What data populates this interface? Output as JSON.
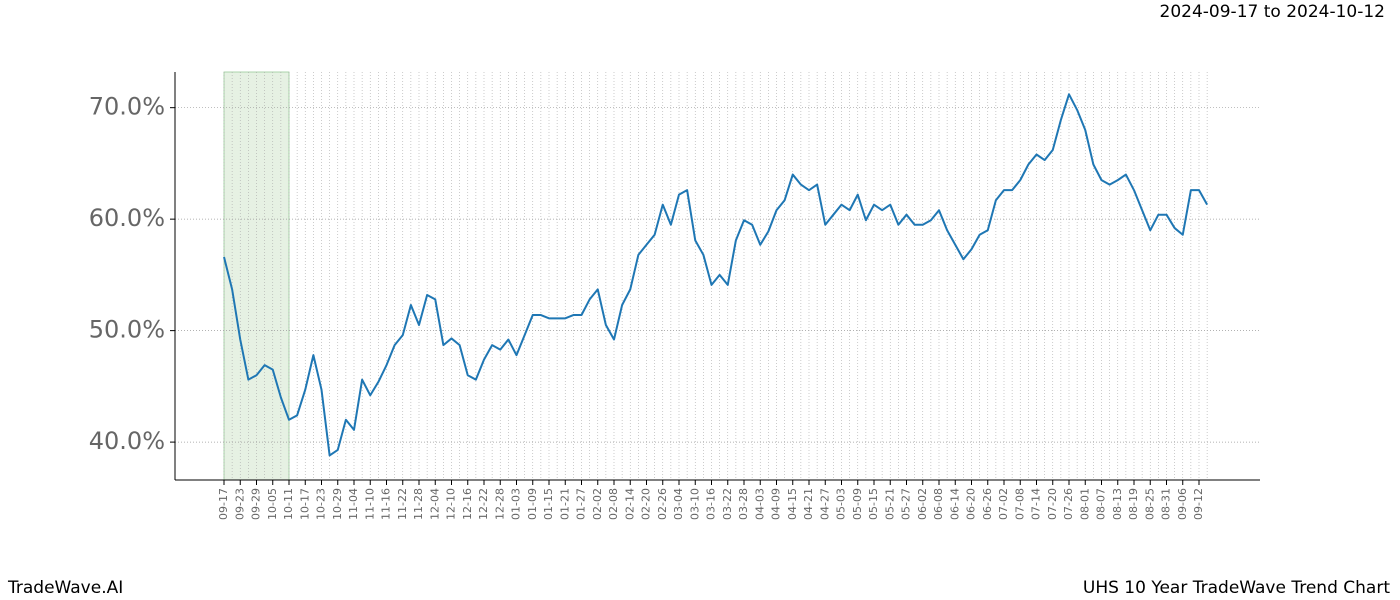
{
  "chart_data": {
    "type": "line",
    "title": "2024-09-17 to 2024-10-12",
    "footer_left": "TradeWave.AI",
    "footer_right": "UHS 10 Year TradeWave Trend Chart",
    "x": [
      "09-17",
      null,
      "09-23",
      null,
      "09-29",
      null,
      "10-05",
      null,
      "10-11",
      null,
      "10-17",
      null,
      "10-23",
      null,
      "10-29",
      null,
      "11-04",
      null,
      "11-10",
      null,
      "11-16",
      null,
      "11-22",
      null,
      "11-28",
      null,
      "12-04",
      null,
      "12-10",
      null,
      "12-16",
      null,
      "12-22",
      null,
      "12-28",
      null,
      "01-03",
      null,
      "01-09",
      null,
      "01-15",
      null,
      "01-21",
      null,
      "01-27",
      null,
      "02-02",
      null,
      "02-08",
      null,
      "02-14",
      null,
      "02-20",
      null,
      "02-26",
      null,
      "03-04",
      null,
      "03-10",
      null,
      "03-16",
      null,
      "03-22",
      null,
      "03-28",
      null,
      "04-03",
      null,
      "04-09",
      null,
      "04-15",
      null,
      "04-21",
      null,
      "04-27",
      null,
      "05-03",
      null,
      "05-09",
      null,
      "05-15",
      null,
      "05-21",
      null,
      "05-27",
      null,
      "06-02",
      null,
      "06-08",
      null,
      "06-14",
      null,
      "06-20",
      null,
      "06-26",
      null,
      "07-02",
      null,
      "07-08",
      null,
      "07-14",
      null,
      "07-20",
      null,
      "07-26",
      null,
      "08-01",
      null,
      "08-07",
      null,
      "08-13",
      null,
      "08-19",
      null,
      "08-25",
      null,
      "08-31",
      null,
      "09-06",
      null,
      "09-12",
      null
    ],
    "series": [
      {
        "color": "#1f77b4",
        "values": [
          56.6,
          53.7,
          49.2,
          45.6,
          46.0,
          46.9,
          46.5,
          44.0,
          42.0,
          42.4,
          44.7,
          47.8,
          44.7,
          38.8,
          39.3,
          42.0,
          41.1,
          45.6,
          44.2,
          45.4,
          46.9,
          48.7,
          49.6,
          52.3,
          50.5,
          53.2,
          52.8,
          48.7,
          49.3,
          48.7,
          46.0,
          45.6,
          47.4,
          48.7,
          48.3,
          49.2,
          47.8,
          49.6,
          51.4,
          51.4,
          51.1,
          51.1,
          51.1,
          51.4,
          51.4,
          52.8,
          53.7,
          50.5,
          49.2,
          52.3,
          53.7,
          56.8,
          57.7,
          58.6,
          61.3,
          59.5,
          62.2,
          62.6,
          58.1,
          56.8,
          54.1,
          55.0,
          54.1,
          58.1,
          59.9,
          59.5,
          57.7,
          58.9,
          60.8,
          61.7,
          64.0,
          63.1,
          62.6,
          63.1,
          59.5,
          60.4,
          61.3,
          60.8,
          62.2,
          59.9,
          61.3,
          60.8,
          61.3,
          59.5,
          60.4,
          59.5,
          59.5,
          59.9,
          60.8,
          59.0,
          57.7,
          56.4,
          57.3,
          58.6,
          59.0,
          61.7,
          62.6,
          62.6,
          63.5,
          64.9,
          65.8,
          65.3,
          66.2,
          68.9,
          71.2,
          69.8,
          68.0,
          64.9,
          63.5,
          63.1,
          63.5,
          64.0,
          62.6,
          60.8,
          59.0,
          60.4,
          60.4,
          59.2,
          58.6,
          62.6,
          62.6,
          61.3
        ]
      }
    ],
    "highlight": {
      "from": "09-17",
      "to": "10-11",
      "color": "#e6f1e3"
    },
    "ylim": [
      36.6,
      73.2
    ],
    "yticks": [
      {
        "value": 40,
        "label": "40.0%"
      },
      {
        "value": 50,
        "label": "50.0%"
      },
      {
        "value": 60,
        "label": "60.0%"
      },
      {
        "value": 70,
        "label": "70.0%"
      }
    ],
    "grid": true
  }
}
